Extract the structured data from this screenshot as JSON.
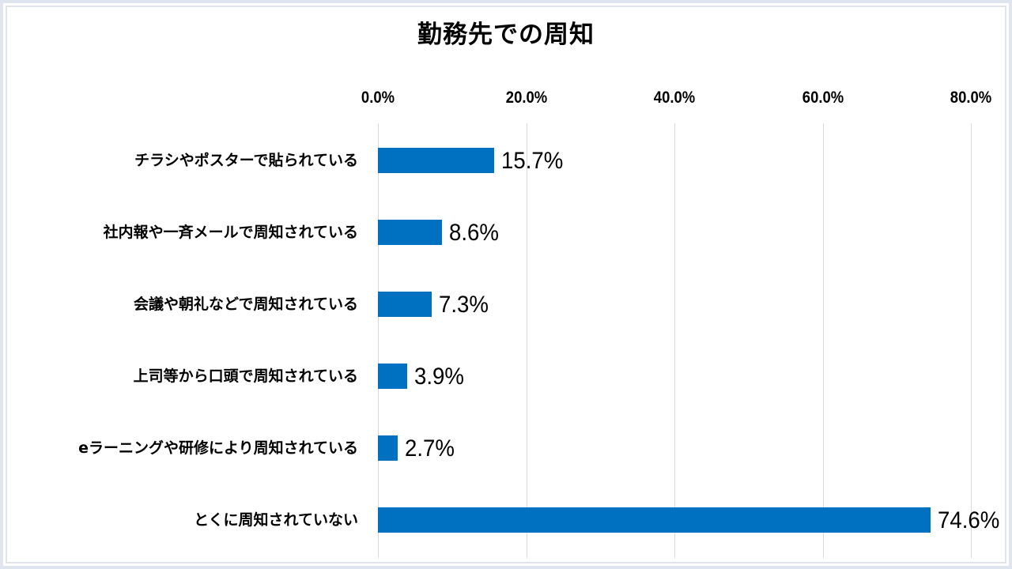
{
  "chart_data": {
    "type": "bar",
    "orientation": "horizontal",
    "title": "勤務先での周知",
    "xlabel": "",
    "ylabel": "",
    "xlim": [
      0,
      80
    ],
    "x_ticks": [
      "0.0%",
      "20.0%",
      "40.0%",
      "60.0%",
      "80.0%"
    ],
    "grid": true,
    "legend": null,
    "categories": [
      "チラシやポスターで貼られている",
      "社内報や一斉メールで周知されている",
      "会議や朝礼などで周知されている",
      "上司等から口頭で周知されている",
      "eラーニングや研修により周知されている",
      "とくに周知されていない"
    ],
    "values": [
      15.7,
      8.6,
      7.3,
      3.9,
      2.7,
      74.6
    ],
    "value_labels": [
      "15.7%",
      "8.6%",
      "7.3%",
      "3.9%",
      "2.7%",
      "74.6%"
    ],
    "bar_color": "#0070c0"
  }
}
